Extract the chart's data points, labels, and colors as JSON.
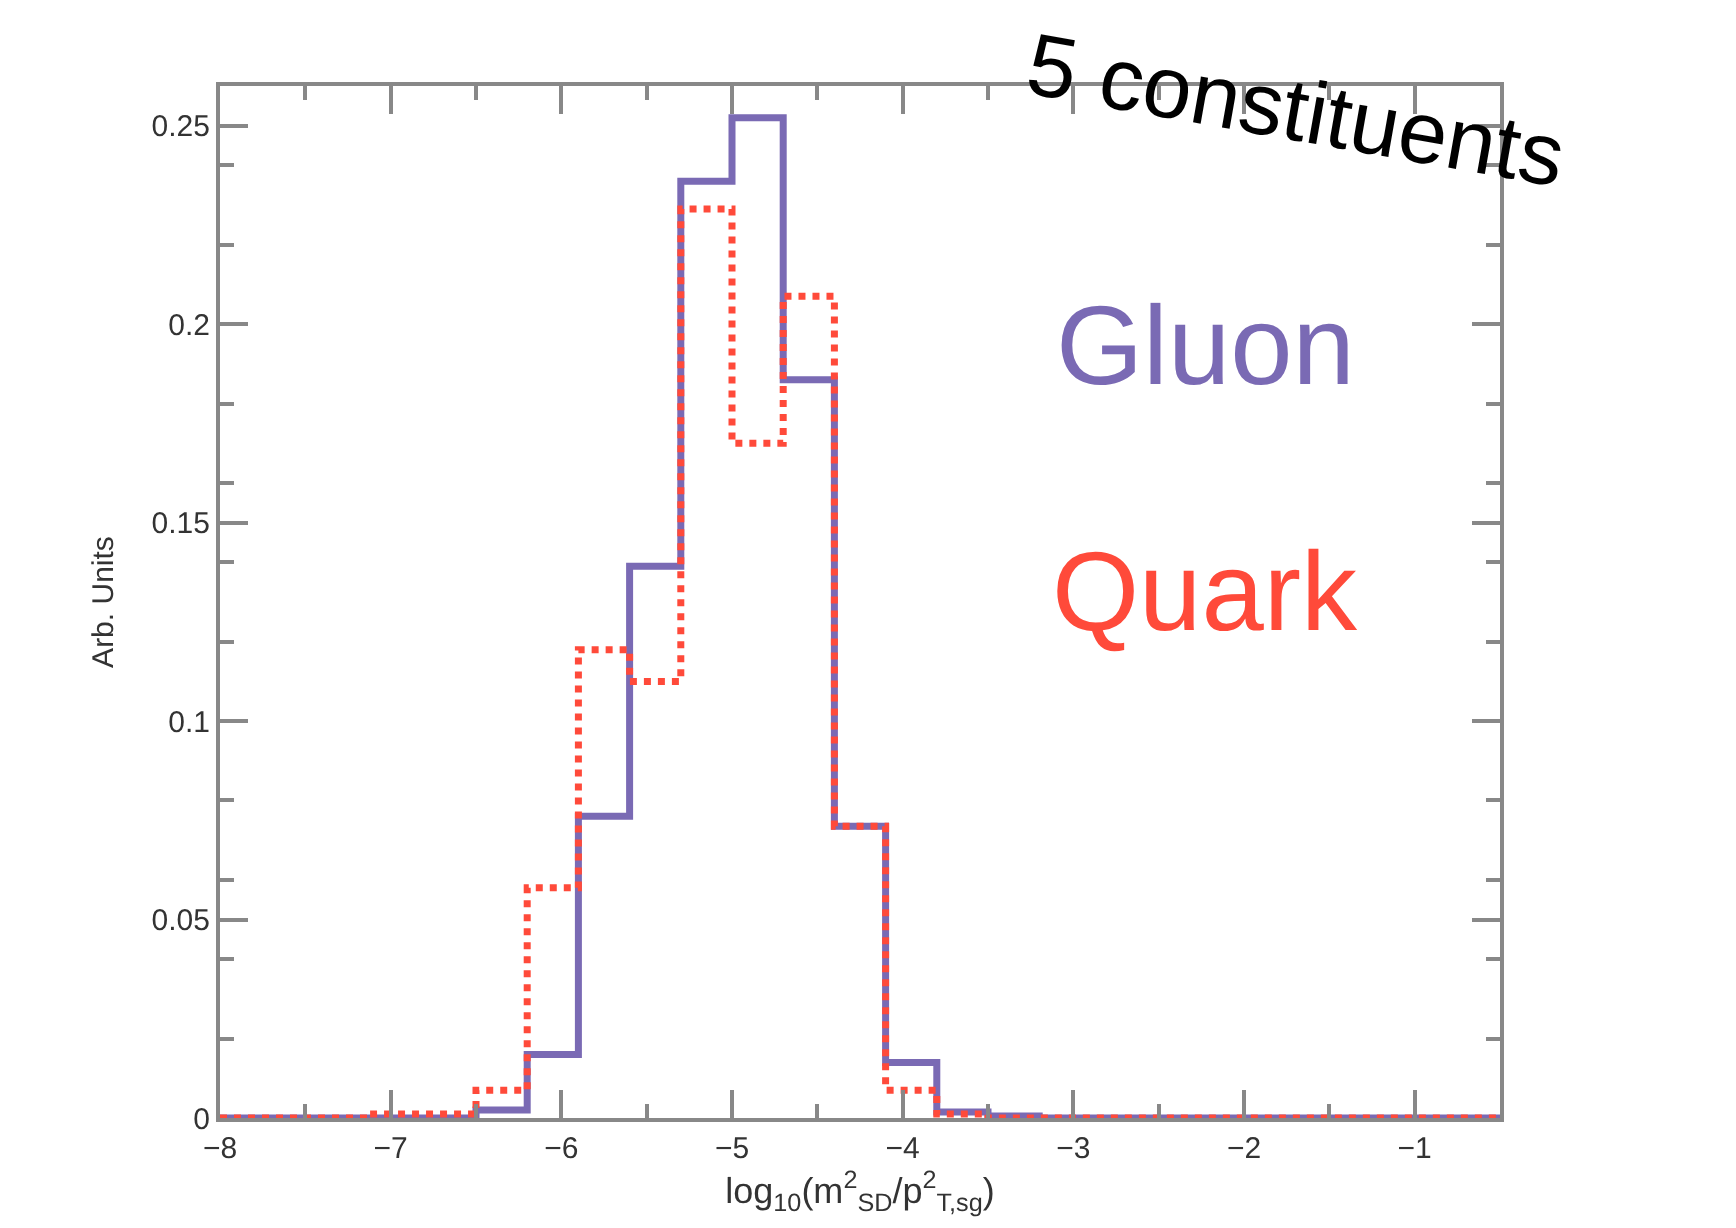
{
  "chart_data": {
    "type": "histogram",
    "title": "5 constituents",
    "xlabel": "log$_{10}$(m$^{2}$$_{SD}$/p$^{2}$$_{T,sg}$)",
    "ylabel": "Arb. Units",
    "bins": [
      -8.0,
      -7.7,
      -7.4,
      -7.1,
      -6.8,
      -6.5,
      -6.2,
      -5.9,
      -5.6,
      -5.3,
      -5.0,
      -4.7,
      -4.4,
      -4.1,
      -3.8,
      -3.5,
      -3.2,
      -2.9,
      -2.6,
      -2.3,
      -2.0,
      -1.7,
      -1.4,
      -1.1,
      -0.8,
      -0.5
    ],
    "series": [
      {
        "name": "Gluon",
        "color": "#7a6ab4",
        "line_style": "solid",
        "values": [
          0,
          0,
          0,
          0,
          0,
          0.002,
          0.016,
          0.076,
          0.139,
          0.236,
          0.252,
          0.186,
          0.0735,
          0.014,
          0.0015,
          0.0005,
          0,
          0,
          0,
          0,
          0,
          0,
          0,
          0,
          0
        ]
      },
      {
        "name": "Quark",
        "color": "#ff4a3a",
        "line_style": "dotted",
        "values": [
          0,
          0,
          0,
          0.001,
          0.001,
          0.007,
          0.058,
          0.118,
          0.11,
          0.229,
          0.17,
          0.207,
          0.0735,
          0.007,
          0.001,
          0,
          0,
          0,
          0,
          0,
          0,
          0,
          0,
          0,
          0
        ]
      }
    ],
    "xlim": [
      -8,
      -0.5
    ],
    "xticks": [
      -8,
      -7,
      -6,
      -5,
      -4,
      -3,
      -2,
      -1
    ],
    "ylim": [
      0,
      0.26
    ],
    "yticks": [
      0,
      0.05,
      0.1,
      0.15,
      0.2,
      0.25
    ]
  }
}
